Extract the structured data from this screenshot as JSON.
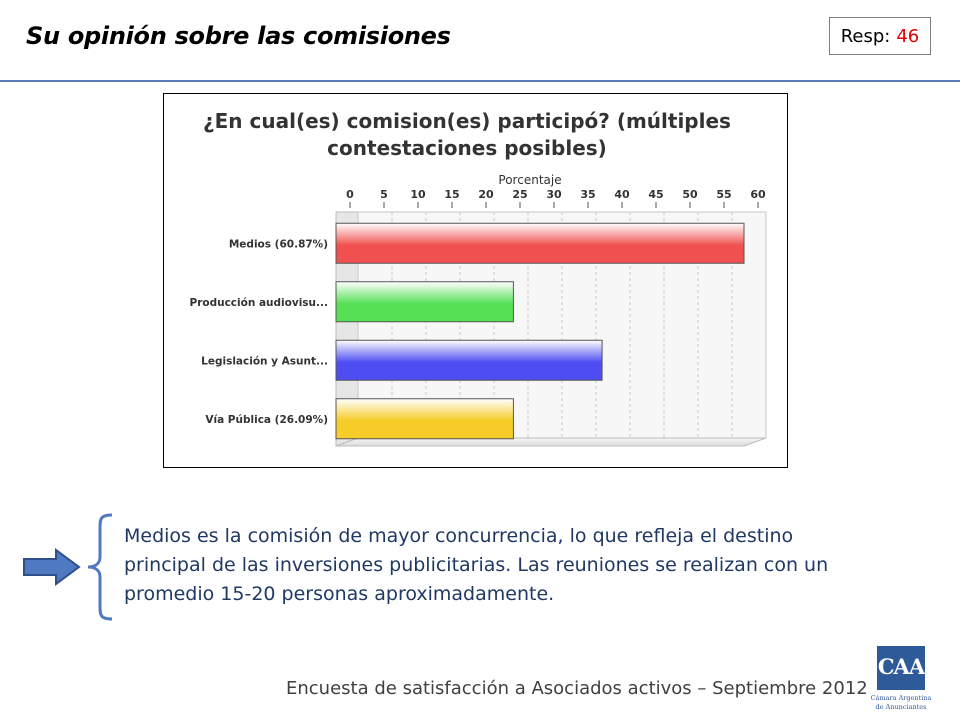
{
  "header": {
    "title": "Su opinión sobre las comisiones",
    "resp_label": "Resp:",
    "resp_value": "46"
  },
  "chart_data": {
    "type": "bar",
    "orientation": "horizontal",
    "title_line1": "¿En cual(es) comision(es) participó? (múltiples",
    "title_line2": "contestaciones posibles)",
    "xlabel": "Porcentaje",
    "xticks": [
      "0",
      "5",
      "10",
      "15",
      "20",
      "25",
      "30",
      "35",
      "40",
      "45",
      "50",
      "55",
      "60"
    ],
    "xlim": [
      0,
      60
    ],
    "categories": [
      "Medios (60.87%)",
      "Producción audiovisu...",
      "Legislación y Asunt...",
      "Vía Pública (26.09%)"
    ],
    "values": [
      60.87,
      26.09,
      39.13,
      26.09
    ],
    "colors": [
      "#f05050",
      "#56e056",
      "#4d4df2",
      "#f5cc28"
    ],
    "grid": true
  },
  "takeaway": {
    "text": "Medios es la comisión de mayor concurrencia, lo que refleja el destino principal de las inversiones publicitarias. Las reuniones se realizan con un promedio 15-20 personas aproximadamente."
  },
  "footer": {
    "text": "Encuesta de satisfacción a Asociados activos – Septiembre 2012"
  },
  "logo": {
    "letters": "CAA",
    "line1": "Cámara Argentina",
    "line2": "de Anunciantes"
  },
  "colors": {
    "accent": "#5a7bb5",
    "resp_value": "#e00000",
    "body_text": "#1f3864"
  }
}
